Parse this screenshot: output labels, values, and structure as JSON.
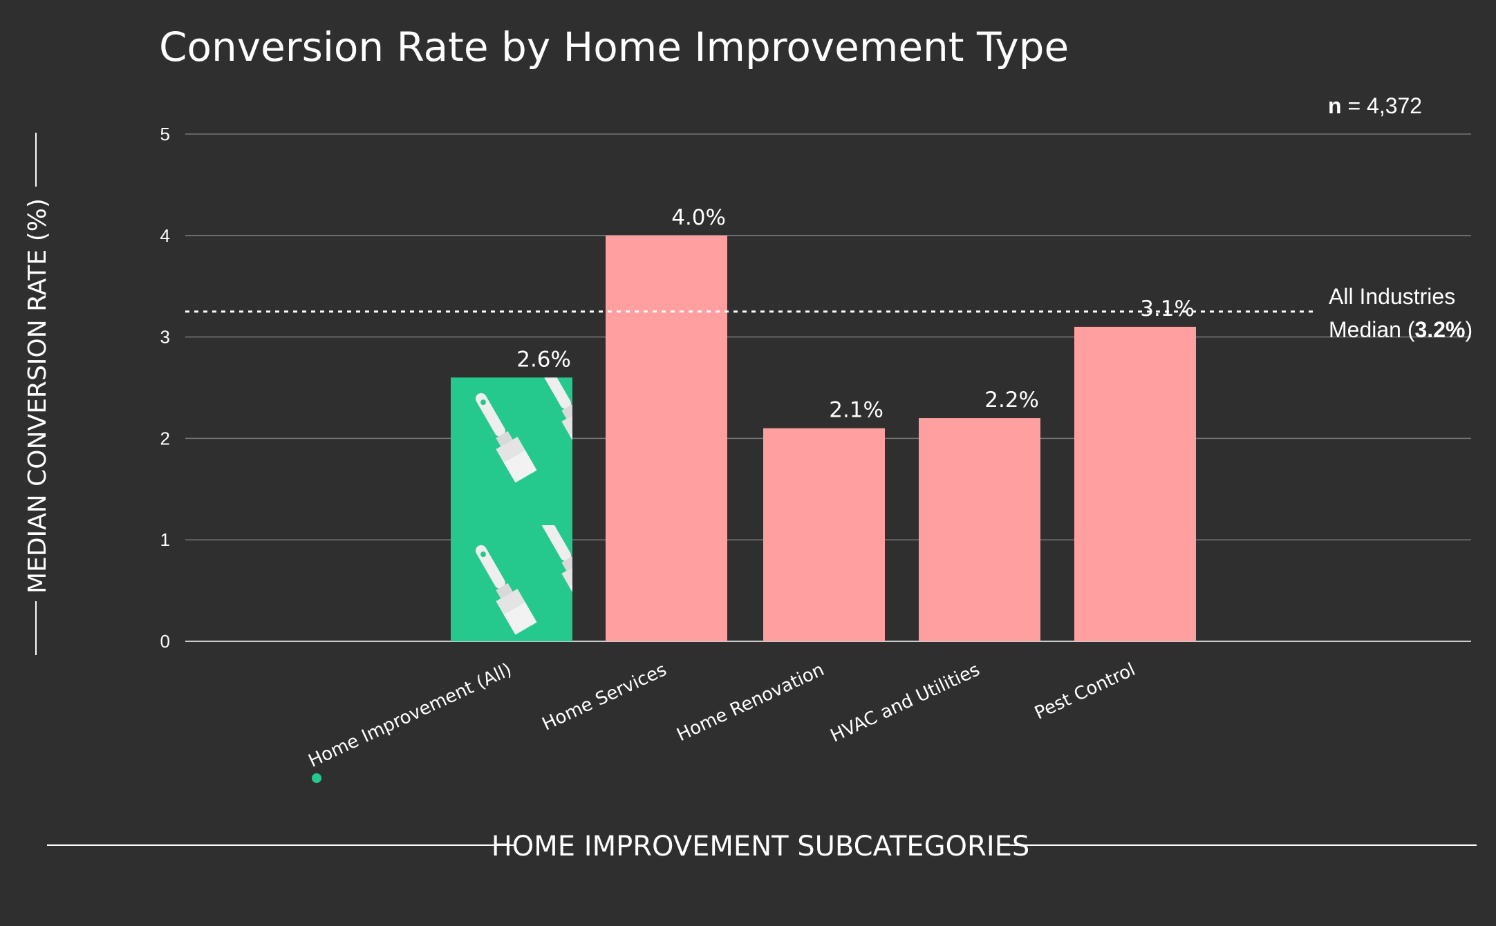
{
  "chart_data": {
    "type": "bar",
    "title": "Conversion Rate by Home Improvement Type",
    "ylabel": "MEDIAN CONVERSION RATE (%)",
    "xlabel": "HOME IMPROVEMENT SUBCATEGORIES",
    "ylim": [
      0,
      5
    ],
    "yticks": [
      "0",
      "1",
      "2",
      "3",
      "4",
      "5"
    ],
    "categories": [
      "Home Improvement (All)",
      "Home Services",
      "Home Renovation",
      "HVAC  and Utilities",
      "Pest Control"
    ],
    "values": [
      2.6,
      4.0,
      2.1,
      2.2,
      3.1
    ],
    "value_labels": [
      "2.6%",
      "4.0%",
      "2.1%",
      "2.2%",
      "3.1%"
    ],
    "highlight_index": 0,
    "reference_line": {
      "value": 3.25,
      "style": "dotted",
      "label_line1": "All Industries",
      "label_line2_prefix": "Median (",
      "label_line2_bold": "3.2%",
      "label_line2_suffix": ")"
    },
    "sample_size": {
      "label": "n",
      "text": " = 4,372"
    },
    "grid": true
  },
  "colors": {
    "background": "#2f2f2f",
    "bar": "#ff9f9f",
    "highlight": "#26c98d",
    "grid": "#777777",
    "text": "#ffffff"
  },
  "icons": {
    "highlight_bar_image": "paintbrush-pattern-icon",
    "highlight_marker": "dot-marker-icon"
  }
}
